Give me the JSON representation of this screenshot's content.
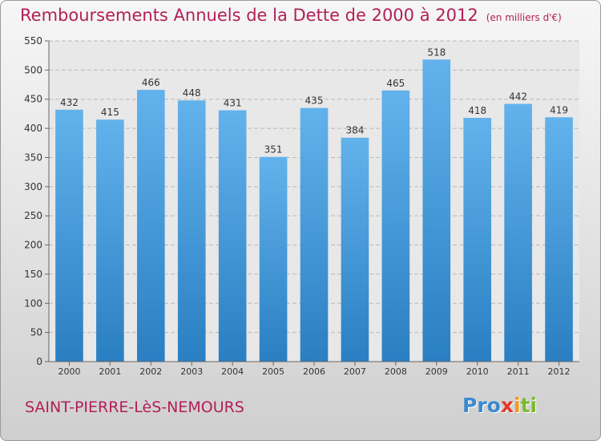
{
  "header": {
    "title": "Remboursements Annuels de la Dette de 2000 à 2012",
    "unit": "(en milliers d'€)"
  },
  "footer": {
    "place": "SAINT-PIERRE-LèS-NEMOURS",
    "logo": {
      "p1": "Pro",
      "p2": "x",
      "p3": "i",
      "p4": "ti"
    }
  },
  "colors": {
    "title": "#b31f57",
    "bar_top": "#62b2ec",
    "bar_bottom": "#2a7fc2",
    "logo_blue": "#3b8ad0",
    "logo_red": "#e2382b",
    "logo_orange": "#f19a1c",
    "logo_green": "#7dba2f"
  },
  "chart_data": {
    "type": "bar",
    "title": "Remboursements Annuels de la Dette de 2000 à 2012",
    "categories": [
      "2000",
      "2001",
      "2002",
      "2003",
      "2004",
      "2005",
      "2006",
      "2007",
      "2008",
      "2009",
      "2010",
      "2011",
      "2012"
    ],
    "values": [
      432,
      415,
      466,
      448,
      431,
      351,
      435,
      384,
      465,
      518,
      418,
      442,
      419
    ],
    "ylim": [
      0,
      550
    ],
    "yticks": [
      0,
      50,
      100,
      150,
      200,
      250,
      300,
      350,
      400,
      450,
      500,
      550
    ],
    "grid": true,
    "data_labels": true
  }
}
